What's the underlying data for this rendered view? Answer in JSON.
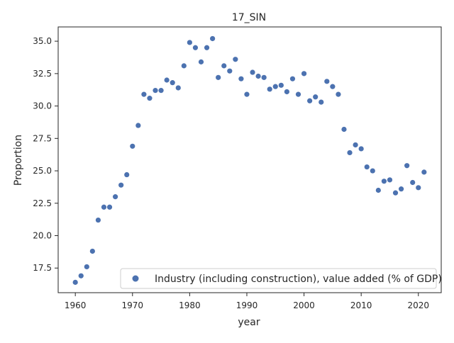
{
  "chart_data": {
    "type": "scatter",
    "title": "17_SIN",
    "xlabel": "year",
    "ylabel": "Proportion",
    "xlim": [
      1957,
      2024
    ],
    "ylim": [
      15.6,
      36.1
    ],
    "xticks": [
      1960,
      1970,
      1980,
      1990,
      2000,
      2010,
      2020
    ],
    "yticks": [
      17.5,
      20.0,
      22.5,
      25.0,
      27.5,
      30.0,
      32.5,
      35.0
    ],
    "ytick_labels": [
      "17.5",
      "20.0",
      "22.5",
      "25.0",
      "27.5",
      "30.0",
      "32.5",
      "35.0"
    ],
    "grid": false,
    "legend_position": "lower right",
    "marker_color": "#4c72b0",
    "series": [
      {
        "name": "Industry (including construction), value added (% of GDP)",
        "x": [
          1960,
          1961,
          1962,
          1963,
          1964,
          1965,
          1966,
          1967,
          1968,
          1969,
          1970,
          1971,
          1972,
          1973,
          1974,
          1975,
          1976,
          1977,
          1978,
          1979,
          1980,
          1981,
          1982,
          1983,
          1984,
          1985,
          1986,
          1987,
          1988,
          1989,
          1990,
          1991,
          1992,
          1993,
          1994,
          1995,
          1996,
          1997,
          1998,
          1999,
          2000,
          2001,
          2002,
          2003,
          2004,
          2005,
          2006,
          2007,
          2008,
          2009,
          2010,
          2011,
          2012,
          2013,
          2014,
          2015,
          2016,
          2017,
          2018,
          2019,
          2020,
          2021
        ],
        "y": [
          16.4,
          16.9,
          17.6,
          18.8,
          21.2,
          22.2,
          22.2,
          23.0,
          23.9,
          24.7,
          26.9,
          28.5,
          30.9,
          30.6,
          31.2,
          31.2,
          32.0,
          31.8,
          31.4,
          33.1,
          34.9,
          34.5,
          33.4,
          34.5,
          35.2,
          32.2,
          33.1,
          32.7,
          33.6,
          32.1,
          30.9,
          32.6,
          32.3,
          32.2,
          31.3,
          31.5,
          31.6,
          31.1,
          32.1,
          30.9,
          32.5,
          30.4,
          30.7,
          30.3,
          31.9,
          31.5,
          30.9,
          28.2,
          26.4,
          27.0,
          26.7,
          25.3,
          25.0,
          23.5,
          24.2,
          24.3,
          23.3,
          23.6,
          25.4,
          24.1,
          23.7,
          24.9
        ]
      }
    ]
  }
}
